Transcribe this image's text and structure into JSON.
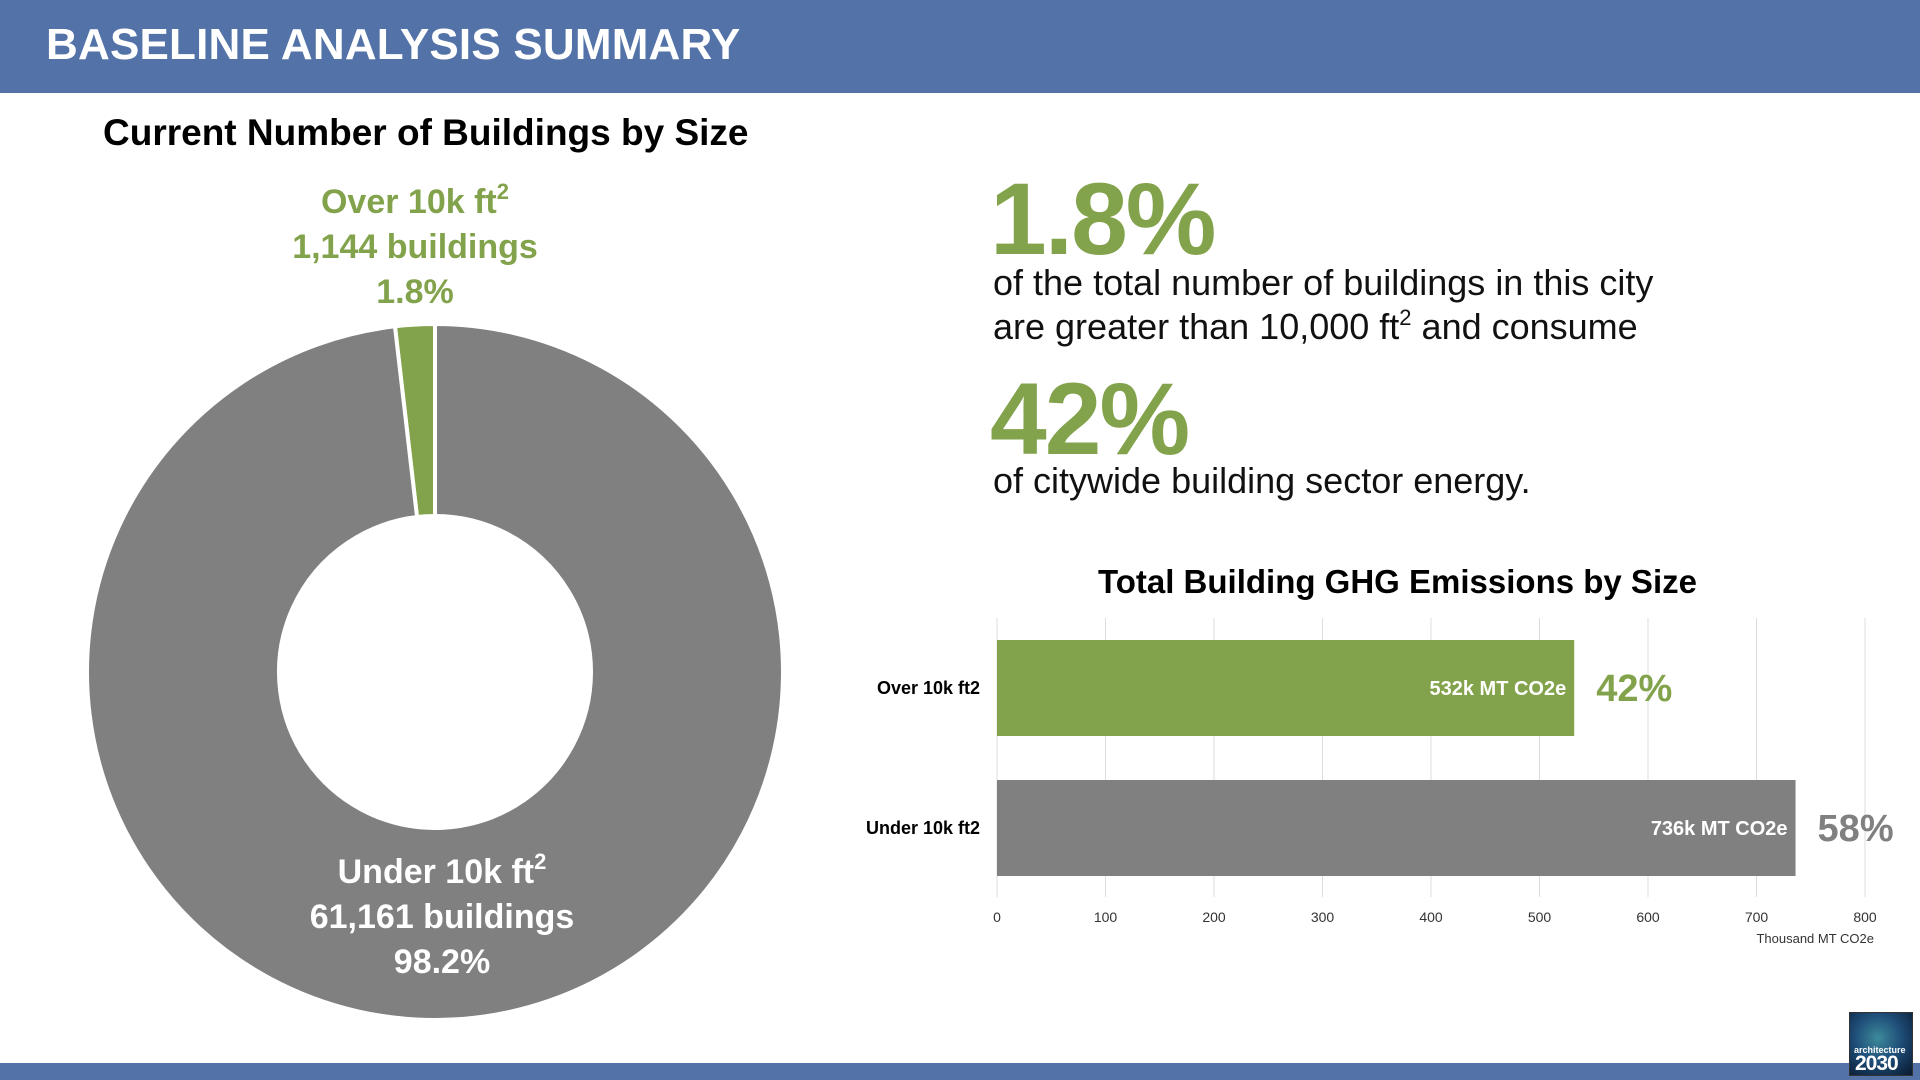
{
  "header": {
    "title": "BASELINE ANALYSIS SUMMARY"
  },
  "colors": {
    "header_bg": "#5272a8",
    "green": "#82a34b",
    "gray": "#808080"
  },
  "donut": {
    "title": "Current Number of Buildings by Size",
    "over": {
      "line1": "Over 10k ft",
      "sup": "2",
      "line2": "1,144 buildings",
      "line3": "1.8%"
    },
    "under": {
      "line1": "Under 10k ft",
      "sup": "2",
      "line2": "61,161 buildings",
      "line3": "98.2%"
    }
  },
  "stats": {
    "big1": "1.8%",
    "text1_line1": "of the total number of buildings in this city",
    "text1_line2a": "are greater than 10,000 ft",
    "text1_sup": "2",
    "text1_line2b": " and consume",
    "big2": "42%",
    "text2": "of citywide building sector energy."
  },
  "bar": {
    "title": "Total Building GHG Emissions by Size",
    "xlabel": "Thousand MT CO2e"
  },
  "chart_data": [
    {
      "type": "pie",
      "title": "Current Number of Buildings by Size",
      "categories": [
        "Over 10k ft2",
        "Under 10k ft2"
      ],
      "values": [
        1144,
        61161
      ],
      "percents": [
        1.8,
        98.2
      ],
      "colors": [
        "#82a34b",
        "#808080"
      ]
    },
    {
      "type": "bar",
      "orientation": "horizontal",
      "title": "Total Building GHG Emissions by Size",
      "categories": [
        "Over 10k ft2",
        "Under 10k ft2"
      ],
      "values": [
        532,
        736
      ],
      "value_labels": [
        "532k MT CO2e",
        "736k MT CO2e"
      ],
      "percent_labels": [
        "42%",
        "58%"
      ],
      "colors": [
        "#82a34b",
        "#808080"
      ],
      "xlabel": "Thousand MT CO2e",
      "xlim": [
        0,
        800
      ],
      "xticks": [
        0,
        100,
        200,
        300,
        400,
        500,
        600,
        700,
        800
      ],
      "grid": true
    }
  ],
  "logo": {
    "sub": "architecture",
    "main": "2030"
  }
}
